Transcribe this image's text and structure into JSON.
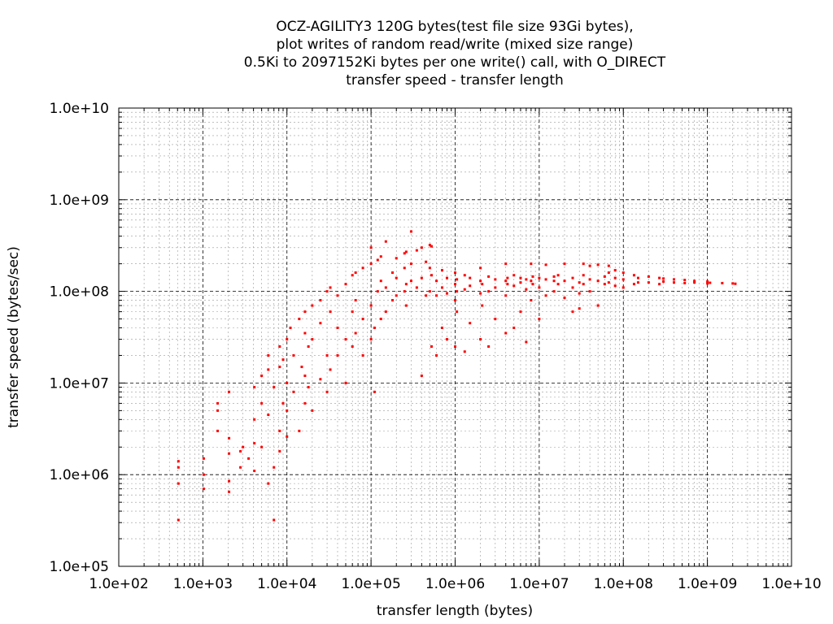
{
  "chart_data": {
    "type": "scatter",
    "title_lines": [
      "OCZ-AGILITY3 120G bytes(test file size 93Gi bytes),",
      "plot writes of random read/write (mixed size range)",
      "0.5Ki to 2097152Ki bytes per one write() call, with O_DIRECT",
      "transfer speed - transfer length"
    ],
    "xlabel": "transfer length (bytes)",
    "ylabel": "transfer speed (bytes/sec)",
    "xscale": "log",
    "yscale": "log",
    "xlim": [
      100,
      10000000000
    ],
    "ylim": [
      100000,
      10000000000
    ],
    "x_ticks": [
      "1.0e+02",
      "1.0e+03",
      "1.0e+04",
      "1.0e+05",
      "1.0e+06",
      "1.0e+07",
      "1.0e+08",
      "1.0e+09",
      "1.0e+10"
    ],
    "y_ticks": [
      "1.0e+05",
      "1.0e+06",
      "1.0e+07",
      "1.0e+08",
      "1.0e+09",
      "1.0e+10"
    ],
    "grid": true,
    "minor_grid": true,
    "marker_color": "#ff0000",
    "points": [
      [
        512,
        320000
      ],
      [
        512,
        800000
      ],
      [
        512,
        1200000
      ],
      [
        512,
        1400000
      ],
      [
        1024,
        700000
      ],
      [
        1024,
        1000000
      ],
      [
        1024,
        1500000
      ],
      [
        1500,
        3000000
      ],
      [
        1500,
        5000000
      ],
      [
        1500,
        6000000
      ],
      [
        2048,
        650000
      ],
      [
        2048,
        850000
      ],
      [
        2048,
        1700000
      ],
      [
        2048,
        2500000
      ],
      [
        2048,
        8000000
      ],
      [
        2800,
        1200000
      ],
      [
        2800,
        1800000
      ],
      [
        3000,
        2000000
      ],
      [
        3500,
        1500000
      ],
      [
        4096,
        1100000
      ],
      [
        4096,
        2200000
      ],
      [
        4096,
        4000000
      ],
      [
        4096,
        9000000
      ],
      [
        5000,
        2000000
      ],
      [
        5000,
        6000000
      ],
      [
        5000,
        12000000
      ],
      [
        6000,
        800000
      ],
      [
        6000,
        4500000
      ],
      [
        6000,
        14000000
      ],
      [
        6000,
        20000000
      ],
      [
        7000,
        320000
      ],
      [
        7000,
        1200000
      ],
      [
        7000,
        9000000
      ],
      [
        8192,
        1800000
      ],
      [
        8192,
        3000000
      ],
      [
        8192,
        15000000
      ],
      [
        8192,
        25000000
      ],
      [
        9000,
        6000000
      ],
      [
        9000,
        18000000
      ],
      [
        10000,
        2600000
      ],
      [
        10000,
        5000000
      ],
      [
        10000,
        10000000
      ],
      [
        10000,
        30000000
      ],
      [
        11000,
        40000000
      ],
      [
        12000,
        8000000
      ],
      [
        12000,
        20000000
      ],
      [
        14000,
        3000000
      ],
      [
        14000,
        50000000
      ],
      [
        15000,
        15000000
      ],
      [
        16384,
        6000000
      ],
      [
        16384,
        12000000
      ],
      [
        16384,
        35000000
      ],
      [
        16384,
        60000000
      ],
      [
        18000,
        9000000
      ],
      [
        18000,
        25000000
      ],
      [
        20000,
        5000000
      ],
      [
        20000,
        30000000
      ],
      [
        20000,
        70000000
      ],
      [
        25000,
        11000000
      ],
      [
        25000,
        45000000
      ],
      [
        25000,
        80000000
      ],
      [
        30000,
        8000000
      ],
      [
        30000,
        20000000
      ],
      [
        30000,
        100000000
      ],
      [
        32768,
        14000000
      ],
      [
        32768,
        60000000
      ],
      [
        32768,
        110000000
      ],
      [
        40000,
        20000000
      ],
      [
        40000,
        40000000
      ],
      [
        40000,
        90000000
      ],
      [
        50000,
        10000000
      ],
      [
        50000,
        30000000
      ],
      [
        50000,
        120000000
      ],
      [
        60000,
        25000000
      ],
      [
        60000,
        60000000
      ],
      [
        60000,
        150000000
      ],
      [
        65536,
        35000000
      ],
      [
        65536,
        80000000
      ],
      [
        65536,
        160000000
      ],
      [
        80000,
        20000000
      ],
      [
        80000,
        50000000
      ],
      [
        80000,
        180000000
      ],
      [
        100000,
        30000000
      ],
      [
        100000,
        70000000
      ],
      [
        100000,
        200000000
      ],
      [
        100000,
        300000000
      ],
      [
        110000,
        8000000
      ],
      [
        110000,
        40000000
      ],
      [
        120000,
        100000000
      ],
      [
        120000,
        220000000
      ],
      [
        131072,
        50000000
      ],
      [
        131072,
        130000000
      ],
      [
        131072,
        240000000
      ],
      [
        150000,
        60000000
      ],
      [
        150000,
        110000000
      ],
      [
        150000,
        350000000
      ],
      [
        180000,
        80000000
      ],
      [
        180000,
        160000000
      ],
      [
        200000,
        90000000
      ],
      [
        200000,
        140000000
      ],
      [
        200000,
        230000000
      ],
      [
        250000,
        100000000
      ],
      [
        250000,
        180000000
      ],
      [
        250000,
        260000000
      ],
      [
        262144,
        70000000
      ],
      [
        262144,
        120000000
      ],
      [
        262144,
        270000000
      ],
      [
        300000,
        130000000
      ],
      [
        300000,
        200000000
      ],
      [
        300000,
        450000000
      ],
      [
        350000,
        110000000
      ],
      [
        350000,
        280000000
      ],
      [
        400000,
        12000000
      ],
      [
        400000,
        140000000
      ],
      [
        400000,
        300000000
      ],
      [
        450000,
        90000000
      ],
      [
        450000,
        210000000
      ],
      [
        500000,
        100000000
      ],
      [
        500000,
        180000000
      ],
      [
        500000,
        320000000
      ],
      [
        524288,
        25000000
      ],
      [
        524288,
        150000000
      ],
      [
        524288,
        310000000
      ],
      [
        600000,
        20000000
      ],
      [
        600000,
        90000000
      ],
      [
        600000,
        130000000
      ],
      [
        700000,
        40000000
      ],
      [
        700000,
        110000000
      ],
      [
        700000,
        170000000
      ],
      [
        800000,
        30000000
      ],
      [
        800000,
        95000000
      ],
      [
        800000,
        140000000
      ],
      [
        1000000,
        25000000
      ],
      [
        1000000,
        80000000
      ],
      [
        1000000,
        120000000
      ],
      [
        1000000,
        160000000
      ],
      [
        1048576,
        60000000
      ],
      [
        1048576,
        100000000
      ],
      [
        1048576,
        135000000
      ],
      [
        1300000,
        22000000
      ],
      [
        1300000,
        105000000
      ],
      [
        1300000,
        150000000
      ],
      [
        1500000,
        45000000
      ],
      [
        1500000,
        115000000
      ],
      [
        1500000,
        140000000
      ],
      [
        2000000,
        30000000
      ],
      [
        2000000,
        95000000
      ],
      [
        2000000,
        130000000
      ],
      [
        2000000,
        180000000
      ],
      [
        2097152,
        70000000
      ],
      [
        2097152,
        120000000
      ],
      [
        2500000,
        25000000
      ],
      [
        2500000,
        100000000
      ],
      [
        2500000,
        145000000
      ],
      [
        3000000,
        50000000
      ],
      [
        3000000,
        110000000
      ],
      [
        3000000,
        135000000
      ],
      [
        4000000,
        35000000
      ],
      [
        4000000,
        90000000
      ],
      [
        4000000,
        130000000
      ],
      [
        4000000,
        200000000
      ],
      [
        4194304,
        120000000
      ],
      [
        4194304,
        140000000
      ],
      [
        5000000,
        40000000
      ],
      [
        5000000,
        115000000
      ],
      [
        5000000,
        150000000
      ],
      [
        6000000,
        60000000
      ],
      [
        6000000,
        125000000
      ],
      [
        6000000,
        140000000
      ],
      [
        7000000,
        28000000
      ],
      [
        7000000,
        105000000
      ],
      [
        7000000,
        135000000
      ],
      [
        8000000,
        80000000
      ],
      [
        8000000,
        130000000
      ],
      [
        8000000,
        200000000
      ],
      [
        8388608,
        120000000
      ],
      [
        8388608,
        145000000
      ],
      [
        10000000,
        50000000
      ],
      [
        10000000,
        110000000
      ],
      [
        10000000,
        140000000
      ],
      [
        12000000,
        90000000
      ],
      [
        12000000,
        135000000
      ],
      [
        12000000,
        195000000
      ],
      [
        15000000,
        100000000
      ],
      [
        15000000,
        130000000
      ],
      [
        15000000,
        145000000
      ],
      [
        16777216,
        120000000
      ],
      [
        16777216,
        150000000
      ],
      [
        20000000,
        85000000
      ],
      [
        20000000,
        130000000
      ],
      [
        20000000,
        200000000
      ],
      [
        25000000,
        60000000
      ],
      [
        25000000,
        110000000
      ],
      [
        25000000,
        140000000
      ],
      [
        30000000,
        65000000
      ],
      [
        30000000,
        95000000
      ],
      [
        30000000,
        125000000
      ],
      [
        33554432,
        120000000
      ],
      [
        33554432,
        150000000
      ],
      [
        33554432,
        200000000
      ],
      [
        40000000,
        100000000
      ],
      [
        40000000,
        135000000
      ],
      [
        40000000,
        190000000
      ],
      [
        50000000,
        70000000
      ],
      [
        50000000,
        130000000
      ],
      [
        50000000,
        195000000
      ],
      [
        60000000,
        120000000
      ],
      [
        60000000,
        145000000
      ],
      [
        67108864,
        125000000
      ],
      [
        67108864,
        160000000
      ],
      [
        67108864,
        190000000
      ],
      [
        80000000,
        115000000
      ],
      [
        80000000,
        140000000
      ],
      [
        80000000,
        170000000
      ],
      [
        100000000,
        110000000
      ],
      [
        100000000,
        135000000
      ],
      [
        100000000,
        160000000
      ],
      [
        134217728,
        120000000
      ],
      [
        134217728,
        150000000
      ],
      [
        150000000,
        125000000
      ],
      [
        150000000,
        140000000
      ],
      [
        200000000,
        125000000
      ],
      [
        200000000,
        145000000
      ],
      [
        268435456,
        120000000
      ],
      [
        268435456,
        140000000
      ],
      [
        300000000,
        128000000
      ],
      [
        300000000,
        138000000
      ],
      [
        400000000,
        125000000
      ],
      [
        400000000,
        135000000
      ],
      [
        536870912,
        123000000
      ],
      [
        536870912,
        133000000
      ],
      [
        700000000,
        125000000
      ],
      [
        700000000,
        130000000
      ],
      [
        1000000000,
        122000000
      ],
      [
        1000000000,
        128000000
      ],
      [
        1073741824,
        124000000
      ],
      [
        1500000000,
        123000000
      ],
      [
        2000000000,
        122000000
      ],
      [
        2147483648,
        121000000
      ]
    ]
  }
}
